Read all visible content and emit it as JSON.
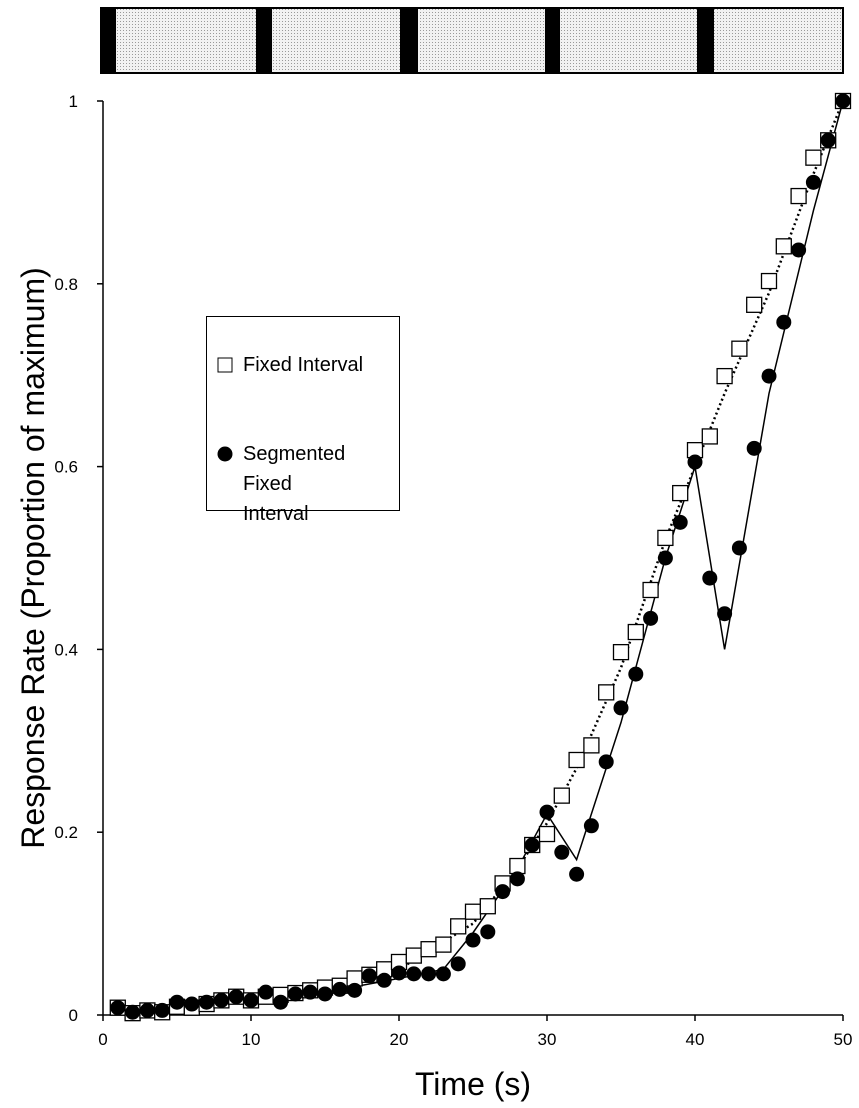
{
  "chart_data": {
    "type": "scatter",
    "xlabel": "Time (s)",
    "ylabel": "Response Rate (Proportion of maximum)",
    "xlim": [
      0,
      50
    ],
    "xticks": [
      0,
      10,
      20,
      30,
      40,
      50
    ],
    "ylim": [
      0,
      1
    ],
    "yticks": [
      0,
      0.2,
      0.4,
      0.6,
      0.8,
      1
    ],
    "series": [
      {
        "line": "dotted",
        "color": "#000000",
        "x": [
          1,
          5,
          10,
          15,
          20,
          25,
          28,
          30,
          32,
          35,
          38,
          40,
          42,
          45,
          48,
          50
        ],
        "values": [
          0.005,
          0.008,
          0.015,
          0.027,
          0.05,
          0.1,
          0.16,
          0.21,
          0.27,
          0.38,
          0.52,
          0.6,
          0.68,
          0.79,
          0.92,
          1.0
        ]
      },
      {
        "line": "solid",
        "color": "#000000",
        "x": [
          1,
          5,
          10,
          15,
          20,
          23,
          25,
          28,
          30,
          32,
          35,
          38,
          40,
          42,
          45,
          48,
          50
        ],
        "values": [
          0.005,
          0.008,
          0.015,
          0.025,
          0.04,
          0.05,
          0.09,
          0.16,
          0.22,
          0.17,
          0.32,
          0.5,
          0.6,
          0.4,
          0.68,
          0.88,
          1.0
        ]
      },
      {
        "name": "Fixed Interval",
        "marker": "square",
        "color": "#000000",
        "x": [
          1,
          2,
          3,
          4,
          5,
          6,
          7,
          8,
          9,
          10,
          11,
          12,
          13,
          14,
          15,
          16,
          17,
          18,
          19,
          20,
          21,
          22,
          23,
          24,
          25,
          26,
          27,
          28,
          29,
          30,
          31,
          32,
          33,
          34,
          35,
          36,
          37,
          38,
          39,
          40,
          41,
          42,
          43,
          44,
          45,
          46,
          47,
          48,
          49,
          50
        ],
        "values": [
          0.008,
          0.002,
          0.005,
          0.003,
          0.009,
          0.008,
          0.012,
          0.016,
          0.02,
          0.016,
          0.02,
          0.022,
          0.024,
          0.027,
          0.03,
          0.032,
          0.04,
          0.044,
          0.05,
          0.058,
          0.065,
          0.072,
          0.077,
          0.097,
          0.113,
          0.119,
          0.144,
          0.163,
          0.186,
          0.198,
          0.24,
          0.279,
          0.295,
          0.353,
          0.397,
          0.419,
          0.465,
          0.522,
          0.571,
          0.618,
          0.633,
          0.699,
          0.729,
          0.777,
          0.803,
          0.841,
          0.896,
          0.938,
          0.957,
          1.0
        ]
      },
      {
        "name": "Segmented Fixed Interval",
        "marker": "circle",
        "color": "#000000",
        "x": [
          1,
          2,
          3,
          4,
          5,
          6,
          7,
          8,
          9,
          10,
          11,
          12,
          13,
          14,
          15,
          16,
          17,
          18,
          19,
          20,
          21,
          22,
          23,
          24,
          25,
          26,
          27,
          28,
          29,
          30,
          31,
          32,
          33,
          34,
          35,
          36,
          37,
          38,
          39,
          40,
          41,
          42,
          43,
          44,
          45,
          46,
          47,
          48,
          49,
          50
        ],
        "values": [
          0.008,
          0.003,
          0.005,
          0.005,
          0.014,
          0.012,
          0.014,
          0.016,
          0.02,
          0.016,
          0.025,
          0.014,
          0.023,
          0.025,
          0.023,
          0.028,
          0.027,
          0.043,
          0.038,
          0.046,
          0.045,
          0.045,
          0.045,
          0.056,
          0.082,
          0.091,
          0.135,
          0.149,
          0.186,
          0.222,
          0.178,
          0.154,
          0.207,
          0.277,
          0.336,
          0.373,
          0.434,
          0.5,
          0.539,
          0.605,
          0.478,
          0.439,
          0.511,
          0.62,
          0.699,
          0.758,
          0.837,
          0.911,
          0.957,
          1.0
        ]
      }
    ]
  }
}
